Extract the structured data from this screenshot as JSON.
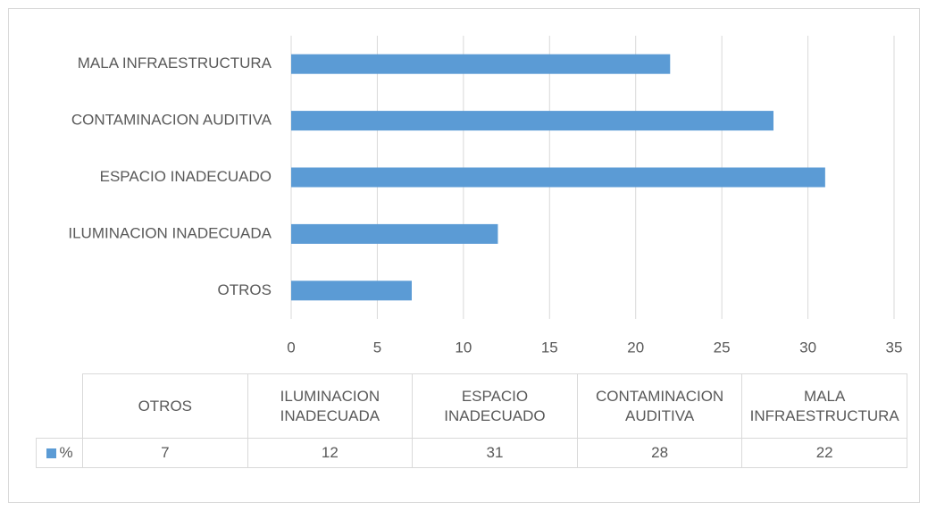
{
  "chart_data": {
    "type": "barh",
    "categories": [
      "OTROS",
      "ILUMINACION INADECUADA",
      "ESPACIO INADECUADO",
      "CONTAMINACION AUDITIVA",
      "MALA INFRAESTRUCTURA"
    ],
    "series": [
      {
        "name": "%",
        "color": "#5b9bd5",
        "values": [
          7,
          12,
          31,
          28,
          22
        ]
      }
    ],
    "xlim": [
      0,
      35
    ],
    "xticks": [
      0,
      5,
      10,
      15,
      20,
      25,
      30,
      35
    ],
    "grid": true,
    "data_table": true
  }
}
